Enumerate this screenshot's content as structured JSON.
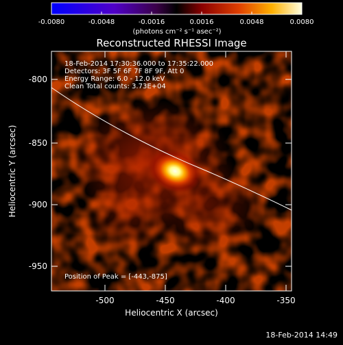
{
  "colorbar": {
    "tick_labels": [
      "-0.0080",
      "-0.0048",
      "-0.0016",
      "0.0016",
      "0.0048",
      "0.0080"
    ],
    "unit_label": "(photons cm⁻² s⁻¹ asec⁻²)"
  },
  "image": {
    "title": "Reconstructed RHESSI Image",
    "info_lines": [
      "18-Feb-2014 17:30:36.000 to 17:35:22.000",
      "Detectors: 3F 5F 6F 7F 8F 9F, Att 0",
      "Energy Range: 6.0 - 12.0 keV",
      "Clean     Total counts: 3.73E+04"
    ],
    "peak_label": "Position of Peak = [-443,-875]",
    "x_axis_label": "Heliocentric X (arcsec)",
    "y_axis_label": "Heliocentric Y (arcsec)",
    "x_ticks": [
      "-500",
      "-450",
      "-400",
      "-350"
    ],
    "y_ticks": [
      "-800",
      "-850",
      "-900",
      "-950"
    ],
    "limb_color": "#ffffff",
    "peak_position": {
      "x": -443,
      "y": -875
    }
  },
  "footer": {
    "timestamp": "18-Feb-2014 14:49"
  }
}
